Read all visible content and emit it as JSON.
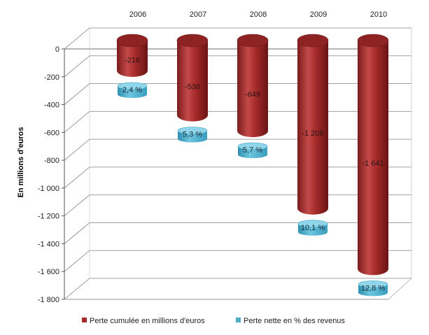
{
  "chart_data": {
    "type": "bar",
    "categories": [
      "2006",
      "2007",
      "2008",
      "2009",
      "2010"
    ],
    "ylabel": "En millions d'euros",
    "ylim": [
      -1800,
      0
    ],
    "y_ticks": [
      0,
      -200,
      -400,
      -600,
      -800,
      -1000,
      -1200,
      -1400,
      -1600,
      -1800
    ],
    "y_tick_labels": [
      "0",
      "-200",
      "-400",
      "-600",
      "-800",
      "-1 000",
      "-1 200",
      "-1 400",
      "-1 600",
      "-1 800"
    ],
    "series": [
      {
        "name": "Perte cumulée en millions d'euros",
        "values": [
          -216,
          -536,
          -649,
          -1206,
          -1641
        ],
        "labels": [
          "-216",
          "-536",
          "-649",
          "-1 206",
          "-1 641"
        ],
        "color": "#a52a2a"
      },
      {
        "name": "Perte nette en % des revenus",
        "values": [
          2.4,
          5.3,
          5.7,
          10.1,
          12.8
        ],
        "labels": [
          "2,4 %",
          "5,3 %",
          "5,7 %",
          "10,1 %",
          "12,8 %"
        ],
        "color": "#4bacc6"
      }
    ],
    "legend_position": "bottom",
    "grid": true
  }
}
